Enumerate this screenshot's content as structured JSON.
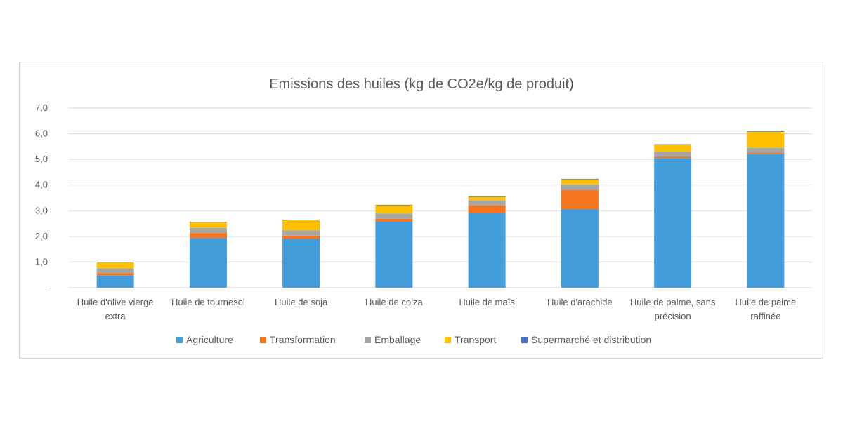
{
  "chart_data": {
    "type": "bar",
    "stacked": true,
    "title": "Emissions des huiles (kg de CO2e/kg de produit)",
    "xlabel": "",
    "ylabel": "",
    "ylim": [
      0,
      7
    ],
    "yticks": [
      0,
      1,
      2,
      3,
      4,
      5,
      6,
      7
    ],
    "ytick_labels": [
      "-",
      "1,0",
      "2,0",
      "3,0",
      "4,0",
      "5,0",
      "6,0",
      "7,0"
    ],
    "grid": true,
    "legend_position": "bottom",
    "categories": [
      [
        "Huile d'olive vierge",
        "extra"
      ],
      [
        "Huile de tournesol"
      ],
      [
        "Huile de soja"
      ],
      [
        "Huile de colza"
      ],
      [
        "Huile de maïs"
      ],
      [
        "Huile d'arachide"
      ],
      [
        "Huile de palme, sans",
        "précision"
      ],
      [
        "Huile de palme",
        "raffinée"
      ]
    ],
    "series": [
      {
        "name": "Agriculture",
        "color": "#439ddb",
        "values": [
          0.47,
          1.93,
          1.9,
          2.57,
          2.9,
          3.05,
          5.05,
          5.2
        ]
      },
      {
        "name": "Transformation",
        "color": "#f4751d",
        "values": [
          0.1,
          0.2,
          0.13,
          0.12,
          0.3,
          0.75,
          0.05,
          0.05
        ]
      },
      {
        "name": "Emballage",
        "color": "#a5a5a5",
        "values": [
          0.18,
          0.2,
          0.2,
          0.2,
          0.2,
          0.22,
          0.2,
          0.2
        ]
      },
      {
        "name": "Transport",
        "color": "#ffc000",
        "values": [
          0.23,
          0.22,
          0.4,
          0.32,
          0.14,
          0.2,
          0.27,
          0.62
        ]
      },
      {
        "name": "Supermarché et distribution",
        "color": "#4472c4",
        "values": [
          0.02,
          0.02,
          0.02,
          0.02,
          0.02,
          0.02,
          0.02,
          0.02
        ]
      }
    ]
  }
}
